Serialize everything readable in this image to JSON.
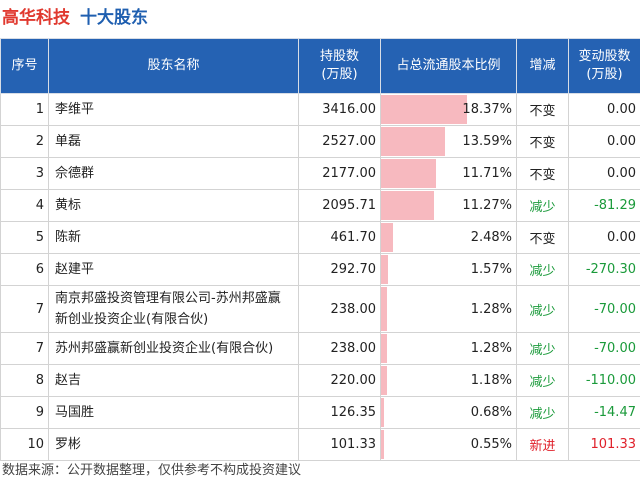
{
  "title": {
    "company": "高华科技",
    "topic": "十大股东"
  },
  "header": [
    [
      "序号"
    ],
    [
      "股东名称"
    ],
    [
      "持股数",
      "(万股)"
    ],
    [
      "占总流通股本比例"
    ],
    [
      "增减"
    ],
    [
      "变动股数",
      "(万股)"
    ]
  ],
  "bar_color": "#f7b9bf",
  "rows": [
    {
      "rank": "1",
      "name": "李维平",
      "shares": "3416.00",
      "ratio": {
        "value": 18.37,
        "label": "18.37%"
      },
      "change": "不变",
      "delta": "0.00",
      "color": "#222222"
    },
    {
      "rank": "2",
      "name": "单磊",
      "shares": "2527.00",
      "ratio": {
        "value": 13.59,
        "label": "13.59%"
      },
      "change": "不变",
      "delta": "0.00",
      "color": "#222222"
    },
    {
      "rank": "3",
      "name": "佘德群",
      "shares": "2177.00",
      "ratio": {
        "value": 11.71,
        "label": "11.71%"
      },
      "change": "不变",
      "delta": "0.00",
      "color": "#222222"
    },
    {
      "rank": "4",
      "name": "黄标",
      "shares": "2095.71",
      "ratio": {
        "value": 11.27,
        "label": "11.27%"
      },
      "change": "减少",
      "delta": "-81.29",
      "color": "#1a9a3a"
    },
    {
      "rank": "5",
      "name": "陈新",
      "shares": "461.70",
      "ratio": {
        "value": 2.48,
        "label": "2.48%"
      },
      "change": "不变",
      "delta": "0.00",
      "color": "#222222"
    },
    {
      "rank": "6",
      "name": "赵建平",
      "shares": "292.70",
      "ratio": {
        "value": 1.57,
        "label": "1.57%"
      },
      "change": "减少",
      "delta": "-270.30",
      "color": "#1a9a3a"
    },
    {
      "rank": "7",
      "name": "南京邦盛投资管理有限公司-苏州邦盛赢新创业投资企业(有限合伙)",
      "shares": "238.00",
      "ratio": {
        "value": 1.28,
        "label": "1.28%"
      },
      "change": "减少",
      "delta": "-70.00",
      "color": "#1a9a3a"
    },
    {
      "rank": "7",
      "name": "苏州邦盛赢新创业投资企业(有限合伙)",
      "shares": "238.00",
      "ratio": {
        "value": 1.28,
        "label": "1.28%"
      },
      "change": "减少",
      "delta": "-70.00",
      "color": "#1a9a3a"
    },
    {
      "rank": "8",
      "name": "赵吉",
      "shares": "220.00",
      "ratio": {
        "value": 1.18,
        "label": "1.18%"
      },
      "change": "减少",
      "delta": "-110.00",
      "color": "#1a9a3a"
    },
    {
      "rank": "9",
      "name": "马国胜",
      "shares": "126.35",
      "ratio": {
        "value": 0.68,
        "label": "0.68%"
      },
      "change": "减少",
      "delta": "-14.47",
      "color": "#1a9a3a"
    },
    {
      "rank": "10",
      "name": "罗彬",
      "shares": "101.33",
      "ratio": {
        "value": 0.55,
        "label": "0.55%"
      },
      "change": "新进",
      "delta": "101.33",
      "color": "#e0202a"
    }
  ],
  "footer": "数据来源：公开数据整理，仅供参考不构成投资建议"
}
